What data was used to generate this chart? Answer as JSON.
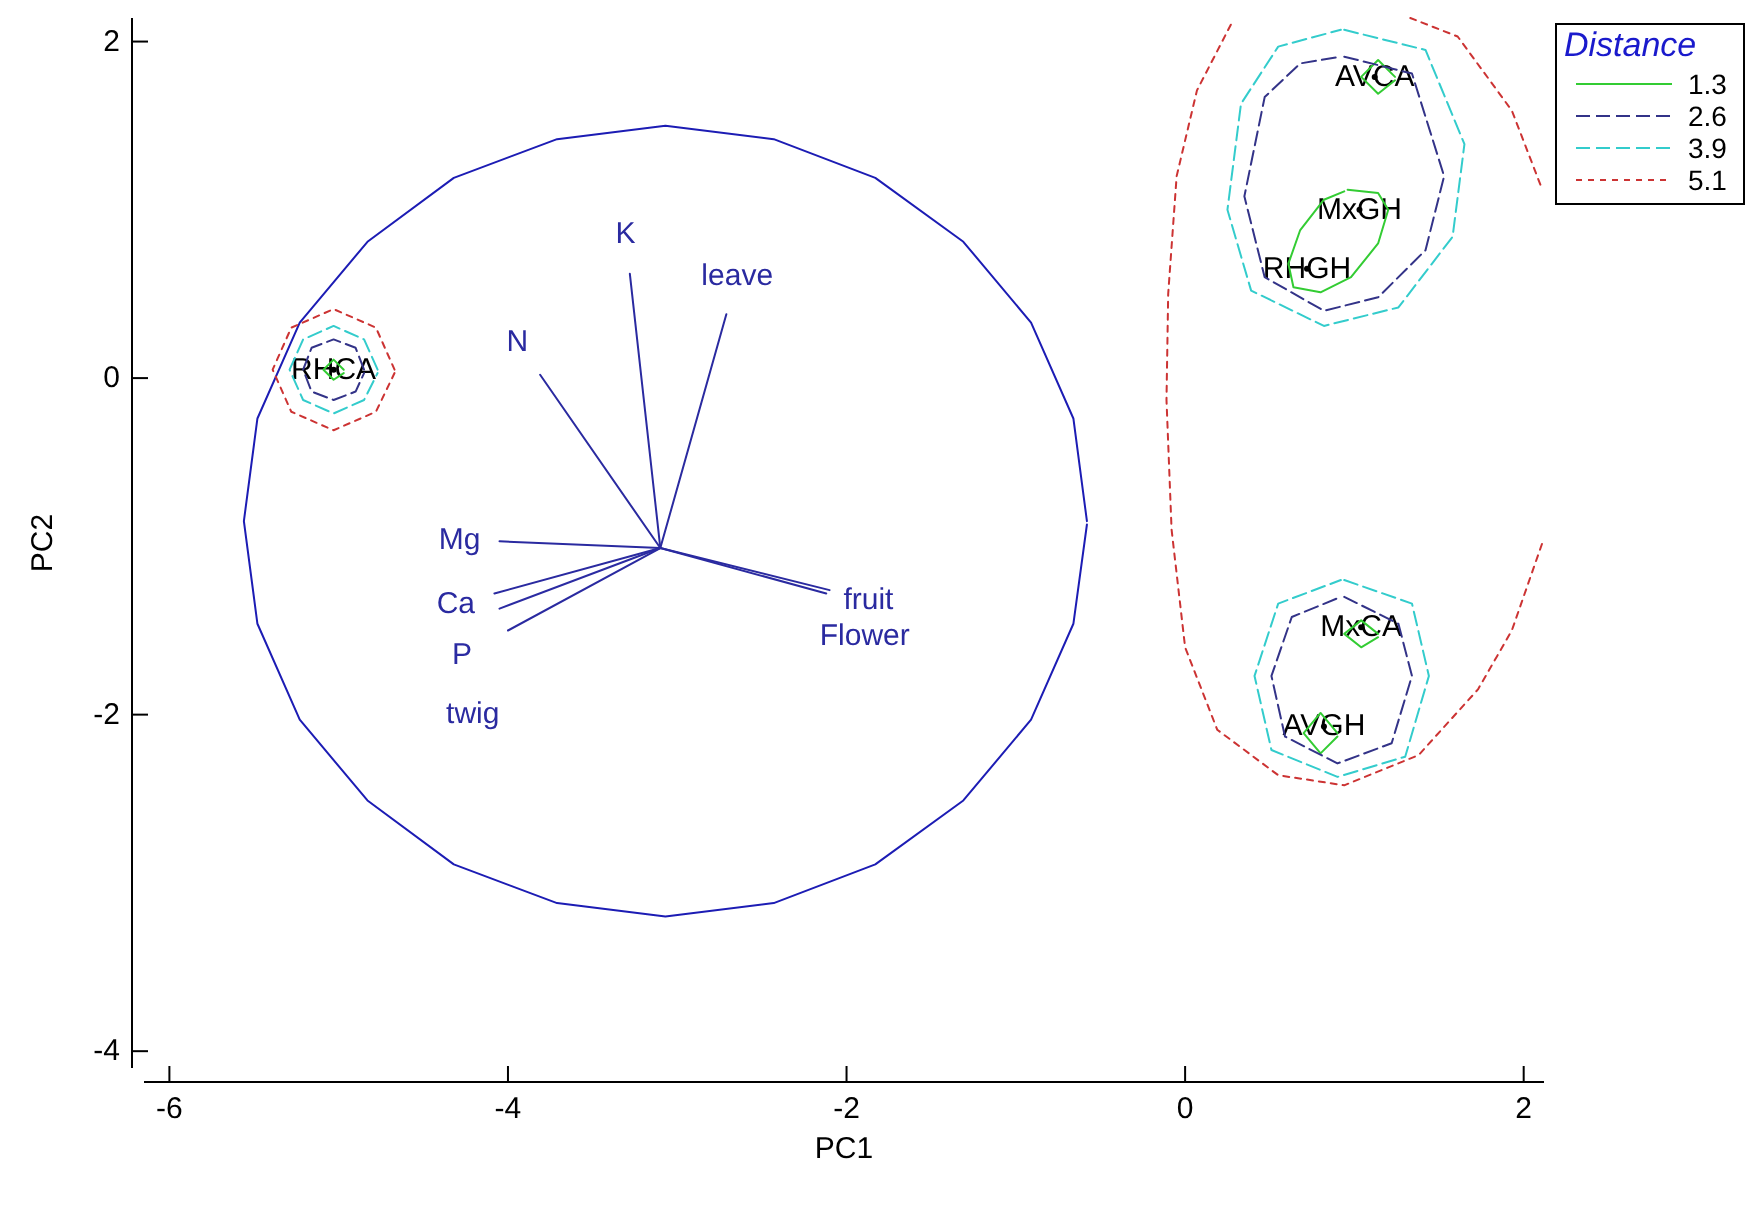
{
  "chart_data": {
    "type": "line",
    "xlabel": "PC1",
    "ylabel": "PC2",
    "legend_title": "Distance",
    "legend": "top right",
    "grid": false,
    "marker": "none",
    "xlim": [
      -6.15,
      2.12
    ],
    "ylim": [
      -4.1,
      2.14
    ],
    "xticks": [
      -6,
      -4,
      -2,
      0,
      2
    ],
    "yticks": [
      -4,
      -2,
      0,
      2
    ],
    "series": [
      {
        "color": "#2a2aa0",
        "x": [
          -3.1,
          -3.28,
          null,
          -3.1,
          -2.71,
          null,
          -3.1,
          -3.81,
          null,
          -3.1,
          -4.05,
          null,
          -3.1,
          -4.08,
          null,
          -3.1,
          -4.0,
          null,
          -3.1,
          -2.1,
          null,
          -3.1,
          -2.12
        ],
        "values": [
          -1.01,
          0.62,
          null,
          -1.01,
          0.38,
          null,
          -1.01,
          0.02,
          null,
          -1.01,
          -0.97,
          null,
          -1.01,
          -1.28,
          null,
          -1.01,
          -1.5,
          null,
          -1.01,
          -1.26,
          null,
          -1.01,
          -1.28
        ]
      },
      {
        "color": "#2b2ba2",
        "x": [
          -3.1,
          -4.05
        ],
        "values": [
          -1.01,
          -1.37
        ]
      },
      {
        "color": "#1c1cb4",
        "x": [
          -0.58,
          -0.66,
          -0.91,
          -1.31,
          -1.83,
          -2.43,
          -3.07,
          -3.71,
          -4.32,
          -4.83,
          -5.23,
          -5.48,
          -5.56,
          -5.48,
          -5.23,
          -4.83,
          -4.32,
          -3.71,
          -3.07,
          -2.43,
          -1.83,
          -1.31,
          -0.91,
          -0.66,
          -0.58
        ],
        "values": [
          -0.85,
          -0.24,
          0.33,
          0.81,
          1.19,
          1.42,
          1.5,
          1.42,
          1.19,
          0.81,
          0.33,
          -0.24,
          -0.85,
          -1.46,
          -2.03,
          -2.51,
          -2.89,
          -3.12,
          -3.2,
          -3.12,
          -2.89,
          -2.51,
          -2.03,
          -1.46,
          -0.87
        ]
      },
      {
        "type": "scatter",
        "marker": "circle",
        "color": "#000000",
        "x": [
          -5.03,
          1.12,
          1.03,
          0.72,
          1.04,
          0.82
        ],
        "values": [
          0.05,
          1.79,
          1.0,
          0.65,
          -1.48,
          -2.07
        ],
        "value_labels": [
          "RHCA",
          "AVCA",
          "MxGH",
          "RHGH",
          "MxCA",
          "AVGH"
        ]
      },
      {
        "name": "1.3",
        "color": "#33cc33",
        "line_style": "solid",
        "x": [
          -4.97,
          -5.03,
          -5.09,
          -5.03,
          -4.97,
          null,
          1.24,
          1.14,
          1.04,
          1.14,
          1.24,
          null,
          0.96,
          1.14,
          1.2,
          1.14,
          0.98,
          0.8,
          0.64,
          0.61,
          0.68,
          0.82,
          0.94,
          null,
          1.14,
          1.04,
          0.94,
          1.04,
          1.14,
          null,
          0.9,
          0.8,
          0.7,
          0.8,
          0.9
        ],
        "values": [
          0.05,
          0.11,
          0.05,
          -0.01,
          0.03,
          null,
          1.79,
          1.89,
          1.79,
          1.69,
          1.77,
          null,
          1.12,
          1.1,
          1.0,
          0.8,
          0.6,
          0.51,
          0.54,
          0.68,
          0.88,
          1.06,
          1.11,
          null,
          -1.52,
          -1.44,
          -1.52,
          -1.6,
          -1.54,
          null,
          -2.11,
          -1.99,
          -2.11,
          -2.23,
          -2.13
        ]
      },
      {
        "name": "2.6",
        "color": "#333388",
        "line_style": "dashed",
        "x": [
          -4.85,
          -4.9,
          -5.03,
          -5.16,
          -5.21,
          -5.16,
          -5.03,
          -4.9,
          -4.85,
          null,
          0.94,
          1.34,
          1.53,
          1.42,
          1.14,
          0.82,
          0.47,
          0.35,
          0.47,
          0.68,
          0.92,
          null,
          0.94,
          1.26,
          1.34,
          1.22,
          0.9,
          0.59,
          0.51,
          0.63,
          0.92
        ],
        "values": [
          0.05,
          0.18,
          0.23,
          0.18,
          0.05,
          -0.08,
          -0.13,
          -0.08,
          0.03,
          null,
          1.91,
          1.81,
          1.2,
          0.76,
          0.48,
          0.4,
          0.6,
          1.08,
          1.67,
          1.87,
          1.91,
          null,
          -1.3,
          -1.46,
          -1.77,
          -2.17,
          -2.29,
          -2.13,
          -1.77,
          -1.42,
          -1.3
        ]
      },
      {
        "name": "3.9",
        "color": "#33cccc",
        "line_style": "dashed",
        "x": [
          -4.77,
          -4.85,
          -5.03,
          -5.21,
          -5.29,
          -5.21,
          -5.03,
          -4.85,
          -4.77,
          null,
          0.94,
          1.42,
          1.65,
          1.58,
          1.26,
          0.82,
          0.39,
          0.25,
          0.33,
          0.55,
          0.92,
          null,
          0.94,
          1.34,
          1.44,
          1.3,
          0.9,
          0.51,
          0.41,
          0.55,
          0.92
        ],
        "values": [
          0.05,
          0.23,
          0.31,
          0.23,
          0.05,
          -0.13,
          -0.21,
          -0.13,
          0.03,
          null,
          2.07,
          1.95,
          1.39,
          0.84,
          0.42,
          0.31,
          0.52,
          1.0,
          1.63,
          1.97,
          2.07,
          null,
          -1.2,
          -1.34,
          -1.77,
          -2.25,
          -2.37,
          -2.21,
          -1.77,
          -1.34,
          -1.2
        ]
      },
      {
        "name": "5.1",
        "color": "#cc3333",
        "line_style": "dotted",
        "x": [
          -4.67,
          -4.78,
          -5.03,
          -5.28,
          -5.39,
          -5.28,
          -5.03,
          -4.78,
          -4.67,
          null,
          0.27,
          0.07,
          -0.05,
          -0.1,
          -0.11,
          -0.08,
          0.0,
          0.19,
          0.55,
          0.94,
          1.38,
          1.73,
          1.93,
          2.11,
          null,
          1.33,
          1.61,
          1.93,
          2.11
        ],
        "values": [
          0.05,
          0.3,
          0.41,
          0.3,
          0.05,
          -0.2,
          -0.31,
          -0.2,
          0.03,
          null,
          2.1,
          1.71,
          1.2,
          0.5,
          -0.13,
          -0.9,
          -1.6,
          -2.09,
          -2.36,
          -2.42,
          -2.24,
          -1.85,
          -1.5,
          -0.98,
          null,
          2.14,
          2.03,
          1.59,
          1.12
        ]
      }
    ],
    "annotations": [
      {
        "text": "K",
        "x": -3.28,
        "y": 0.62
      },
      {
        "text": "leave",
        "x": -2.71,
        "y": 0.38
      },
      {
        "text": "N",
        "x": -3.81,
        "y": 0.02
      },
      {
        "text": "Mg",
        "x": -4.05,
        "y": -0.97
      },
      {
        "text": "Ca",
        "x": -4.08,
        "y": -1.28
      },
      {
        "text": "P",
        "x": -4.05,
        "y": -1.37
      },
      {
        "text": "twig",
        "x": -4.0,
        "y": -1.5
      },
      {
        "text": "fruit",
        "x": -2.1,
        "y": -1.26
      },
      {
        "text": "Flower",
        "x": -2.12,
        "y": -1.28
      }
    ]
  }
}
